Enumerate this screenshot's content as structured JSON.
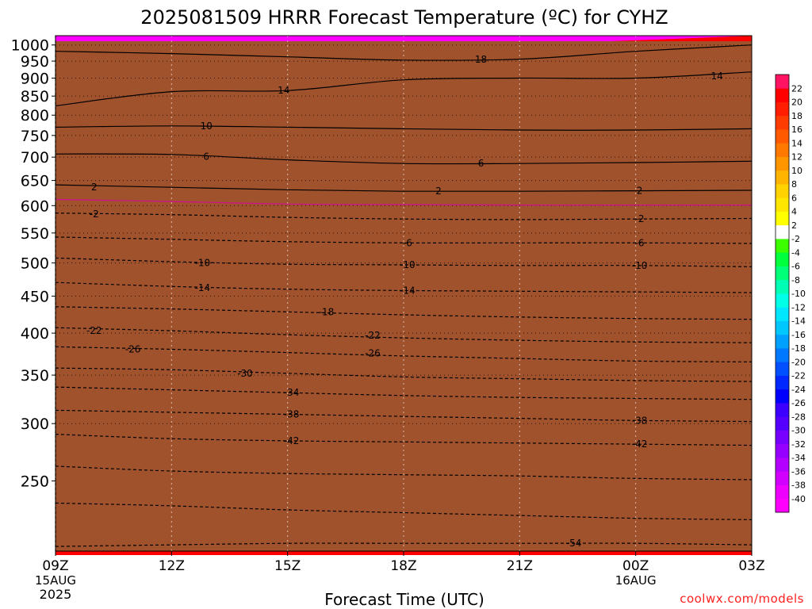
{
  "chart_data": {
    "type": "heatmap",
    "title": "2025081509 HRRR Forecast Temperature (ºC) for CYHZ",
    "xlabel": "Forecast Time (UTC)",
    "ylabel": "",
    "credit": "coolwx.com/models",
    "x_ticks": [
      {
        "hour": 0,
        "label": "09Z",
        "sub1": "15AUG",
        "sub2": "2025"
      },
      {
        "hour": 3,
        "label": "12Z"
      },
      {
        "hour": 6,
        "label": "15Z"
      },
      {
        "hour": 9,
        "label": "18Z"
      },
      {
        "hour": 12,
        "label": "21Z"
      },
      {
        "hour": 15,
        "label": "00Z",
        "sub1": "16AUG"
      },
      {
        "hour": 18,
        "label": "03Z"
      }
    ],
    "x_range_hours": [
      0,
      18
    ],
    "y_axis": "pressure (hPa), logarithmic, inverted",
    "y_range_hpa": [
      1030,
      200
    ],
    "y_ticks": [
      250,
      300,
      350,
      400,
      450,
      500,
      550,
      600,
      650,
      700,
      750,
      800,
      850,
      900,
      950,
      1000
    ],
    "dotted_levels": [
      300,
      350,
      400,
      450,
      500,
      550,
      600,
      650,
      700,
      750,
      800,
      850,
      900,
      950,
      1000
    ],
    "ground_color": "#a0522d",
    "colorbar": {
      "edges": [
        -42,
        -40,
        -38,
        -36,
        -34,
        -32,
        -30,
        -28,
        -26,
        -24,
        -22,
        -20,
        -18,
        -16,
        -14,
        -12,
        -10,
        -8,
        -6,
        -4,
        -2,
        2,
        4,
        6,
        8,
        10,
        12,
        14,
        16,
        18,
        20,
        22,
        24
      ],
      "colors": [
        "#ff00ff",
        "#ee00ff",
        "#d200ff",
        "#b400ff",
        "#9600ff",
        "#7800ff",
        "#5500ff",
        "#3c00ff",
        "#0000ff",
        "#0028ff",
        "#0050ff",
        "#0078ff",
        "#00a0ff",
        "#00c8ff",
        "#00e6ff",
        "#00ffe6",
        "#00ffb4",
        "#00ff78",
        "#00ff3c",
        "#3cff00",
        "#ffffff",
        "#ffff00",
        "#ffe600",
        "#ffd200",
        "#ffb400",
        "#ff9600",
        "#ff7800",
        "#ff5a00",
        "#ff3c00",
        "#ff1e00",
        "#ff0000",
        "#ff1464"
      ],
      "labels": [
        22,
        20,
        18,
        16,
        14,
        12,
        10,
        8,
        6,
        4,
        2,
        -2,
        -4,
        -6,
        -8,
        -10,
        -12,
        -14,
        -16,
        -18,
        -20,
        -22,
        -24,
        -26,
        -28,
        -30,
        -32,
        -34,
        -36,
        -38,
        -40
      ]
    },
    "profile_hours": [
      0,
      3,
      6,
      9,
      12,
      15,
      18
    ],
    "temperature_levels_hpa": {
      "20": [
        1002,
        1003,
        1002,
        1000,
        1003,
        1015,
        1030
      ],
      "18": [
        980,
        975,
        965,
        954,
        960,
        985,
        1005
      ],
      "16": [
        940,
        950,
        945,
        940,
        945,
        962,
        985
      ],
      "14": [
        820,
        855,
        850,
        880,
        895,
        900,
        915
      ],
      "12": [
        795,
        800,
        800,
        805,
        810,
        815,
        820
      ],
      "10": [
        765,
        770,
        765,
        760,
        752,
        752,
        762
      ],
      "8": [
        735,
        730,
        720,
        705,
        700,
        705,
        712
      ],
      "6": [
        705,
        700,
        685,
        672,
        672,
        676,
        682
      ],
      "4": [
        662,
        660,
        648,
        640,
        640,
        643,
        647
      ],
      "2": [
        636,
        630,
        620,
        615,
        614,
        617,
        620
      ],
      "-2": [
        588,
        588,
        582,
        575,
        573,
        573,
        575
      ],
      "-4": [
        568,
        566,
        560,
        555,
        553,
        553,
        556
      ],
      "-6": [
        540,
        538,
        532,
        528,
        526,
        526,
        529
      ],
      "-8": [
        520,
        518,
        512,
        508,
        506,
        506,
        508
      ],
      "-10": [
        498,
        496,
        492,
        490,
        490,
        490,
        491
      ],
      "-12": [
        480,
        478,
        474,
        471,
        470,
        470,
        471
      ],
      "-14": [
        465,
        462,
        458,
        455,
        454,
        454,
        455
      ],
      "-16": [
        448,
        446,
        442,
        438,
        436,
        436,
        437
      ],
      "-18": [
        432,
        430,
        426,
        422,
        420,
        419,
        420
      ],
      "-20": [
        418,
        416,
        412,
        408,
        406,
        405,
        405
      ],
      "-22": [
        404,
        402,
        398,
        394,
        392,
        390,
        390
      ],
      "-24": [
        392,
        390,
        386,
        382,
        380,
        378,
        378
      ],
      "-26": [
        380,
        378,
        374,
        370,
        368,
        366,
        366
      ],
      "-28": [
        367,
        365,
        361,
        357,
        355,
        353,
        353
      ],
      "-30": [
        353,
        352,
        349,
        346,
        344,
        342,
        342
      ],
      "-32": [
        340,
        339,
        336,
        333,
        331,
        330,
        330
      ],
      "-34": [
        328,
        327,
        324,
        322,
        320,
        319,
        319
      ],
      "-36": [
        318,
        317,
        314,
        312,
        311,
        310,
        310
      ],
      "-38": [
        307,
        306,
        304,
        302,
        301,
        300,
        300
      ],
      "-40": [
        297,
        296,
        294,
        292,
        291,
        290,
        290
      ]
    },
    "ground_pressure_hpa": 1012,
    "contours": [
      {
        "value": -54,
        "label": "-54",
        "dashed": true,
        "p": [
          203,
          204,
          205,
          205,
          205,
          205,
          204
        ]
      },
      {
        "value": -50,
        "label": "",
        "dashed": true,
        "p": [
          233,
          231,
          228,
          226,
          224,
          222,
          221
        ]
      },
      {
        "value": -46,
        "label": "",
        "dashed": true,
        "p": [
          262,
          258,
          256,
          255,
          254,
          252,
          251
        ]
      },
      {
        "value": -42,
        "label": "-42",
        "dashed": true,
        "p": [
          290,
          286,
          284,
          283,
          282,
          281,
          280
        ]
      },
      {
        "value": -38,
        "label": "-38",
        "dashed": true,
        "p": [
          313,
          311,
          309,
          307,
          305,
          303,
          302
        ]
      },
      {
        "value": -34,
        "label": "-34",
        "dashed": true,
        "p": [
          337,
          334,
          331,
          328,
          326,
          325,
          324
        ]
      },
      {
        "value": -30,
        "label": "-30",
        "dashed": true,
        "p": [
          358,
          356,
          352,
          348,
          346,
          344,
          343
        ]
      },
      {
        "value": -26,
        "label": "-26",
        "dashed": true,
        "p": [
          383,
          380,
          376,
          372,
          369,
          366,
          365
        ]
      },
      {
        "value": -22,
        "label": "-22",
        "dashed": true,
        "p": [
          407,
          403,
          398,
          394,
          391,
          389,
          388
        ]
      },
      {
        "value": -18,
        "label": "-18",
        "dashed": true,
        "p": [
          435,
          432,
          428,
          424,
          421,
          419,
          418
        ]
      },
      {
        "value": -14,
        "label": "-14",
        "dashed": true,
        "p": [
          470,
          464,
          460,
          458,
          457,
          456,
          455
        ]
      },
      {
        "value": -10,
        "label": "-10",
        "dashed": true,
        "p": [
          508,
          502,
          498,
          497,
          496,
          496,
          494
        ]
      },
      {
        "value": -6,
        "label": "-6",
        "dashed": true,
        "p": [
          543,
          539,
          535,
          533,
          533,
          533,
          532
        ]
      },
      {
        "value": -2,
        "label": "-2",
        "dashed": true,
        "p": [
          586,
          583,
          578,
          575,
          574,
          575,
          576
        ]
      },
      {
        "value": 0,
        "label": "",
        "dashed": false,
        "color": "#d01090",
        "p": [
          612,
          608,
          603,
          602,
          601,
          601,
          601
        ]
      },
      {
        "value": 2,
        "label": "2",
        "dashed": false,
        "p": [
          641,
          636,
          631,
          628,
          628,
          629,
          630
        ]
      },
      {
        "value": 6,
        "label": "6",
        "dashed": false,
        "p": [
          707,
          706,
          694,
          686,
          686,
          688,
          691
        ]
      },
      {
        "value": 10,
        "label": "10",
        "dashed": false,
        "p": [
          770,
          773,
          770,
          766,
          763,
          763,
          766
        ]
      },
      {
        "value": 14,
        "label": "14",
        "dashed": false,
        "p": [
          824,
          862,
          865,
          895,
          900,
          900,
          918
        ]
      },
      {
        "value": 18,
        "label": "18",
        "dashed": false,
        "p": [
          980,
          973,
          963,
          953,
          956,
          980,
          1000
        ]
      }
    ],
    "contour_labels": [
      {
        "text": "-54",
        "hour": 13.4,
        "p": 205
      },
      {
        "text": "-42",
        "hour": 6.1,
        "p": 284
      },
      {
        "text": "-42",
        "hour": 15.1,
        "p": 281
      },
      {
        "text": "-38",
        "hour": 6.1,
        "p": 309
      },
      {
        "text": "-38",
        "hour": 15.1,
        "p": 303
      },
      {
        "text": "-34",
        "hour": 6.1,
        "p": 331
      },
      {
        "text": "-30",
        "hour": 4.9,
        "p": 352
      },
      {
        "text": "-26",
        "hour": 2.0,
        "p": 380
      },
      {
        "text": "-26",
        "hour": 8.2,
        "p": 375
      },
      {
        "text": "-22",
        "hour": 1.0,
        "p": 403
      },
      {
        "text": "-22",
        "hour": 8.2,
        "p": 397
      },
      {
        "text": "-18",
        "hour": 7.0,
        "p": 428
      },
      {
        "text": "-14",
        "hour": 3.8,
        "p": 462
      },
      {
        "text": "-14",
        "hour": 9.1,
        "p": 458
      },
      {
        "text": "-10",
        "hour": 3.8,
        "p": 500
      },
      {
        "text": "-10",
        "hour": 9.1,
        "p": 497
      },
      {
        "text": "-10",
        "hour": 15.1,
        "p": 496
      },
      {
        "text": "-6",
        "hour": 9.1,
        "p": 533
      },
      {
        "text": "-6",
        "hour": 15.1,
        "p": 533
      },
      {
        "text": "-2",
        "hour": 1.0,
        "p": 584
      },
      {
        "text": "-2",
        "hour": 15.1,
        "p": 575
      },
      {
        "text": "2",
        "hour": 1.0,
        "p": 636
      },
      {
        "text": "2",
        "hour": 9.9,
        "p": 628
      },
      {
        "text": "2",
        "hour": 15.1,
        "p": 629
      },
      {
        "text": "6",
        "hour": 3.9,
        "p": 701
      },
      {
        "text": "6",
        "hour": 11.0,
        "p": 686
      },
      {
        "text": "10",
        "hour": 3.9,
        "p": 773
      },
      {
        "text": "14",
        "hour": 5.9,
        "p": 866
      },
      {
        "text": "14",
        "hour": 17.1,
        "p": 906
      },
      {
        "text": "18",
        "hour": 11.0,
        "p": 955
      }
    ]
  }
}
